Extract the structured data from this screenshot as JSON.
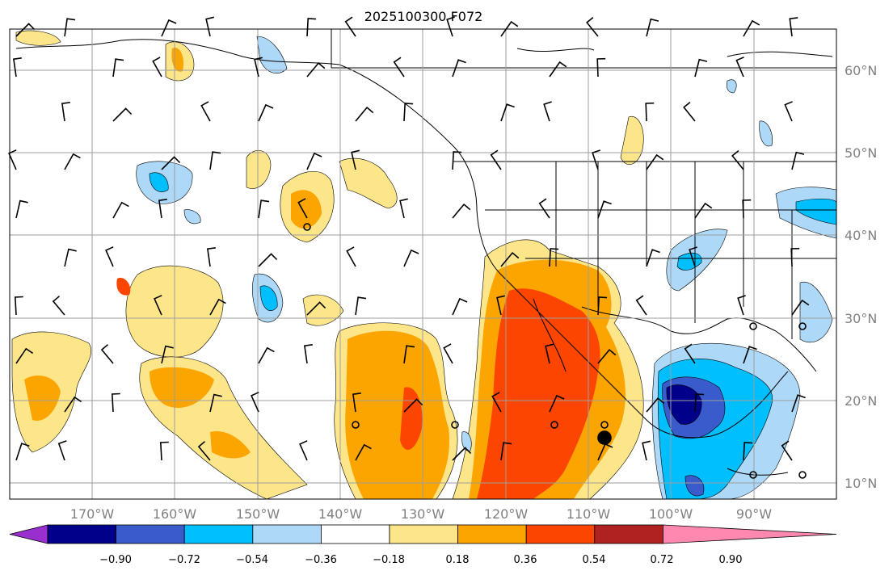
{
  "map": {
    "title": "2025100300 F072",
    "lon_labels": [
      "170°W",
      "160°W",
      "150°W",
      "140°W",
      "130°W",
      "120°W",
      "110°W",
      "100°W",
      "90°W"
    ],
    "lat_labels": [
      "60°N",
      "50°N",
      "40°N",
      "30°N",
      "20°N",
      "10°N"
    ],
    "lon_range": [
      -180,
      -80
    ],
    "lat_range": [
      8,
      65
    ],
    "grid": true
  },
  "colorbar": {
    "tick_labels": [
      "−0.90",
      "−0.72",
      "−0.54",
      "−0.36",
      "−0.18",
      "0.18",
      "0.36",
      "0.54",
      "0.72",
      "0.90"
    ],
    "colors": [
      "#9a2fcf",
      "#00008b",
      "#3a5bcc",
      "#00bfff",
      "#add8f7",
      "#ffffff",
      "#fde68a",
      "#fca500",
      "#fc4500",
      "#b02222",
      "#ff88b0"
    ]
  },
  "icons": {
    "wind": "wind-barb-icon",
    "station": "station-marker-icon"
  }
}
